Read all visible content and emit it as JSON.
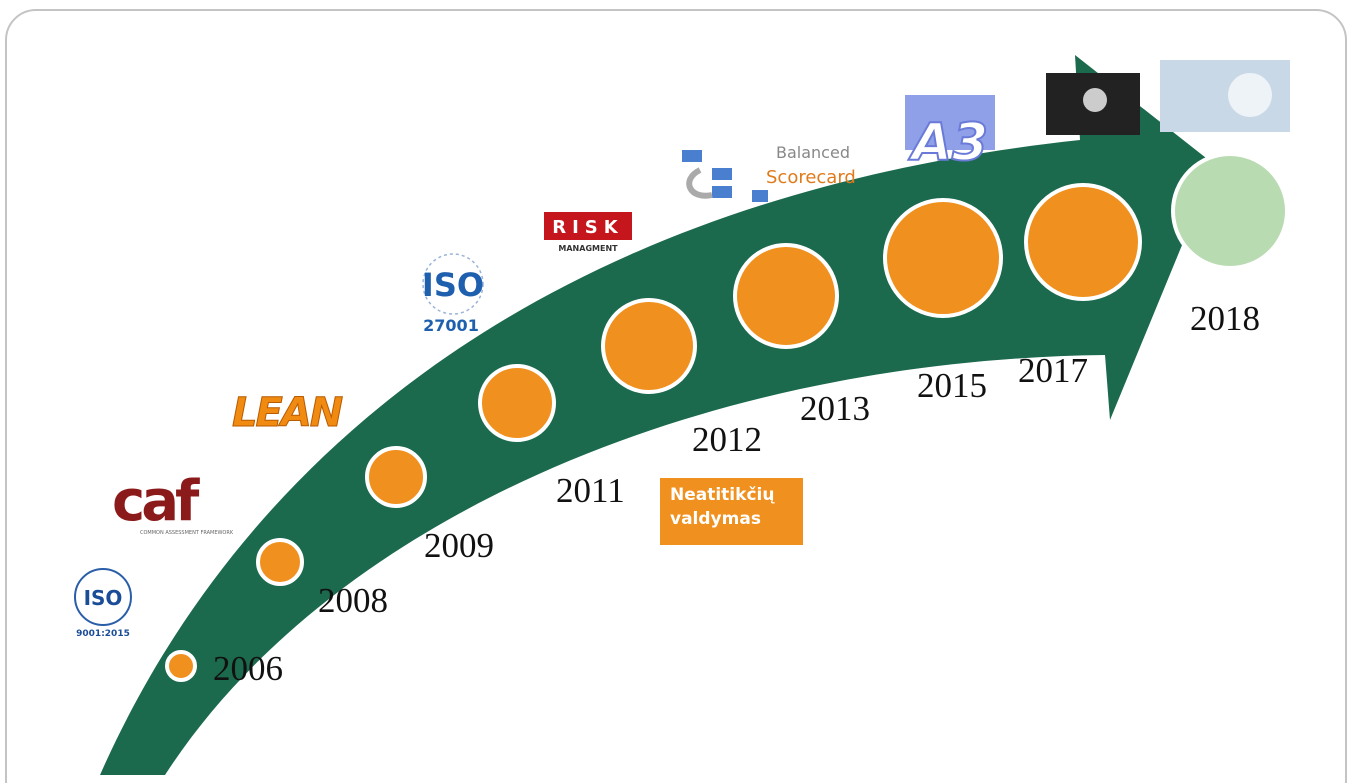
{
  "timeline": {
    "years": [
      "2006",
      "2008",
      "2009",
      "2011",
      "2012",
      "2013",
      "2015",
      "2017",
      "2018"
    ]
  },
  "logos": {
    "iso9001": {
      "title": "ISO",
      "subtitle": "9001:2015"
    },
    "caf": {
      "title": "caf",
      "subtitle": "COMMON ASSESSMENT FRAMEWORK"
    },
    "lean": "LEAN",
    "iso27001": {
      "title": "ISO",
      "subtitle": "27001"
    },
    "risk": {
      "title": "RISK",
      "subtitle": "MANAGMENT"
    },
    "bsc": {
      "line1": "Balanced",
      "line2": "Scorecard"
    },
    "a3": "A3"
  },
  "note": {
    "lines": [
      "Neatitikčių",
      "valdymas"
    ]
  }
}
